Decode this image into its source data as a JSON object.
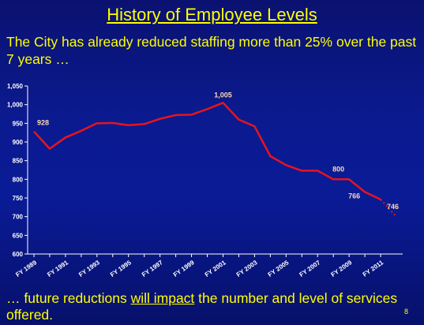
{
  "slide": {
    "title": "History of Employee Levels",
    "subtitle": "The City has already reduced staffing more than 25% over the past 7 years …",
    "footer_pre": "… future reductions ",
    "footer_emphasis": "will impact",
    "footer_post": " the number and level of services offered.",
    "page_number": "8"
  },
  "colors": {
    "background": "#0a1b97",
    "heading_text": "#ffff00",
    "axis_text": "#ffffff",
    "series_line": "#e8141c",
    "data_label": "#ffd8b0"
  },
  "chart_data": {
    "type": "line",
    "y_ticks": [
      600,
      650,
      700,
      750,
      800,
      850,
      900,
      950,
      1000,
      1050
    ],
    "y_tick_labels": [
      "600",
      "650",
      "700",
      "750",
      "800",
      "850",
      "900",
      "950",
      "1,000",
      "1,050"
    ],
    "ylim": [
      600,
      1050
    ],
    "x_tick_labels": [
      "FY 1989",
      "FY 1991",
      "FY 1993",
      "FY 1995",
      "FY 1997",
      "FY 1999",
      "FY 2001",
      "FY 2003",
      "FY 2005",
      "FY 2007",
      "FY 2009",
      "FY 2011"
    ],
    "x_years": [
      1989,
      1990,
      1991,
      1992,
      1993,
      1994,
      1995,
      1996,
      1997,
      1998,
      1999,
      2000,
      2001,
      2002,
      2003,
      2004,
      2005,
      2006,
      2007,
      2008,
      2009,
      2010,
      2011
    ],
    "series": [
      {
        "style": "solid",
        "values": [
          928,
          882,
          912,
          930,
          950,
          951,
          945,
          948,
          962,
          972,
          973,
          988,
          1005,
          960,
          942,
          862,
          838,
          823,
          823,
          800,
          800,
          766,
          746
        ]
      },
      {
        "style": "dotted",
        "x_years": [
          2011,
          2012
        ],
        "values": [
          746,
          700
        ]
      }
    ],
    "data_labels": [
      {
        "x": 1989,
        "y": 928,
        "text": "928"
      },
      {
        "x": 2001,
        "y": 1005,
        "text": "1,005"
      },
      {
        "x": 2009,
        "y": 800,
        "text": "800"
      },
      {
        "x": 2010,
        "y": 766,
        "text": "766"
      },
      {
        "x": 2011,
        "y": 746,
        "text": "746"
      }
    ],
    "grid": false,
    "legend": "none"
  }
}
